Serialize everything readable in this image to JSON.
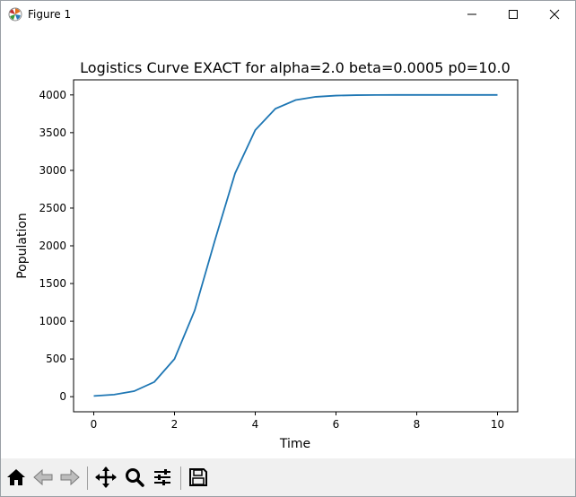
{
  "window": {
    "title": "Figure 1"
  },
  "toolbar": {
    "buttons": [
      {
        "name": "home-button",
        "icon": "home-icon"
      },
      {
        "name": "back-button",
        "icon": "back-arrow-icon"
      },
      {
        "name": "forward-button",
        "icon": "forward-arrow-icon"
      },
      {
        "name": "pan-button",
        "icon": "move-icon"
      },
      {
        "name": "zoom-button",
        "icon": "magnifier-icon"
      },
      {
        "name": "configure-subplots-button",
        "icon": "sliders-icon"
      },
      {
        "name": "save-button",
        "icon": "floppy-disk-icon"
      }
    ]
  },
  "colors": {
    "line": "#1f77b4",
    "toolbar_bg": "#f0f0f0"
  },
  "chart_data": {
    "type": "line",
    "title": "Logistics Curve EXACT for alpha=2.0 beta=0.0005 p0=10.0",
    "xlabel": "Time",
    "ylabel": "Population",
    "xlim": [
      -0.5,
      10.5
    ],
    "ylim": [
      -200,
      4200
    ],
    "xticks": [
      0,
      2,
      4,
      6,
      8,
      10
    ],
    "xtick_labels": [
      "0",
      "2",
      "4",
      "6",
      "8",
      "10"
    ],
    "yticks": [
      0,
      500,
      1000,
      1500,
      2000,
      2500,
      3000,
      3500,
      4000
    ],
    "ytick_labels": [
      "0",
      "500",
      "1000",
      "1500",
      "2000",
      "2500",
      "3000",
      "3500",
      "4000"
    ],
    "grid": false,
    "series": [
      {
        "x": [
          0,
          0.5,
          1.0,
          1.5,
          2.0,
          2.5,
          3.0,
          3.5,
          4.0,
          4.5,
          5.0,
          5.5,
          6.0,
          6.5,
          7.0,
          7.5,
          8.0,
          8.5,
          9.0,
          9.5,
          10.0
        ],
        "values": [
          10,
          27,
          73,
          195,
          500,
          1143,
          2072,
          2961,
          3534,
          3818,
          3932,
          3975,
          3991,
          3997,
          3999,
          4000,
          4000,
          4000,
          4000,
          4000,
          4000
        ]
      }
    ]
  }
}
